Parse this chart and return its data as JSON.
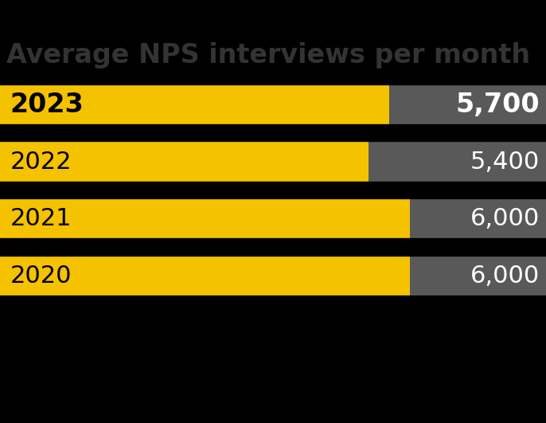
{
  "title": "Average NPS interviews per month",
  "background_color": "#000000",
  "title_color": "#333333",
  "title_fontsize": 24,
  "title_fontweight": "bold",
  "bar_max": 8000,
  "categories": [
    "2023",
    "2022",
    "2021",
    "2020"
  ],
  "values": [
    5700,
    5400,
    6000,
    6000
  ],
  "value_labels": [
    "5,700",
    "5,400",
    "6,000",
    "6,000"
  ],
  "yellow_color": "#F5C200",
  "gray_color": "#595959",
  "separator_color": "#000000",
  "separator_thickness": 6,
  "year_label_color": "#000000",
  "value_label_color": "#ffffff",
  "year_fontsize_bold": 24,
  "year_fontsize": 22,
  "value_fontsize_bold": 24,
  "value_fontsize": 22,
  "highlight_row": 0,
  "figwidth": 6.86,
  "figheight": 5.31,
  "dpi": 100
}
